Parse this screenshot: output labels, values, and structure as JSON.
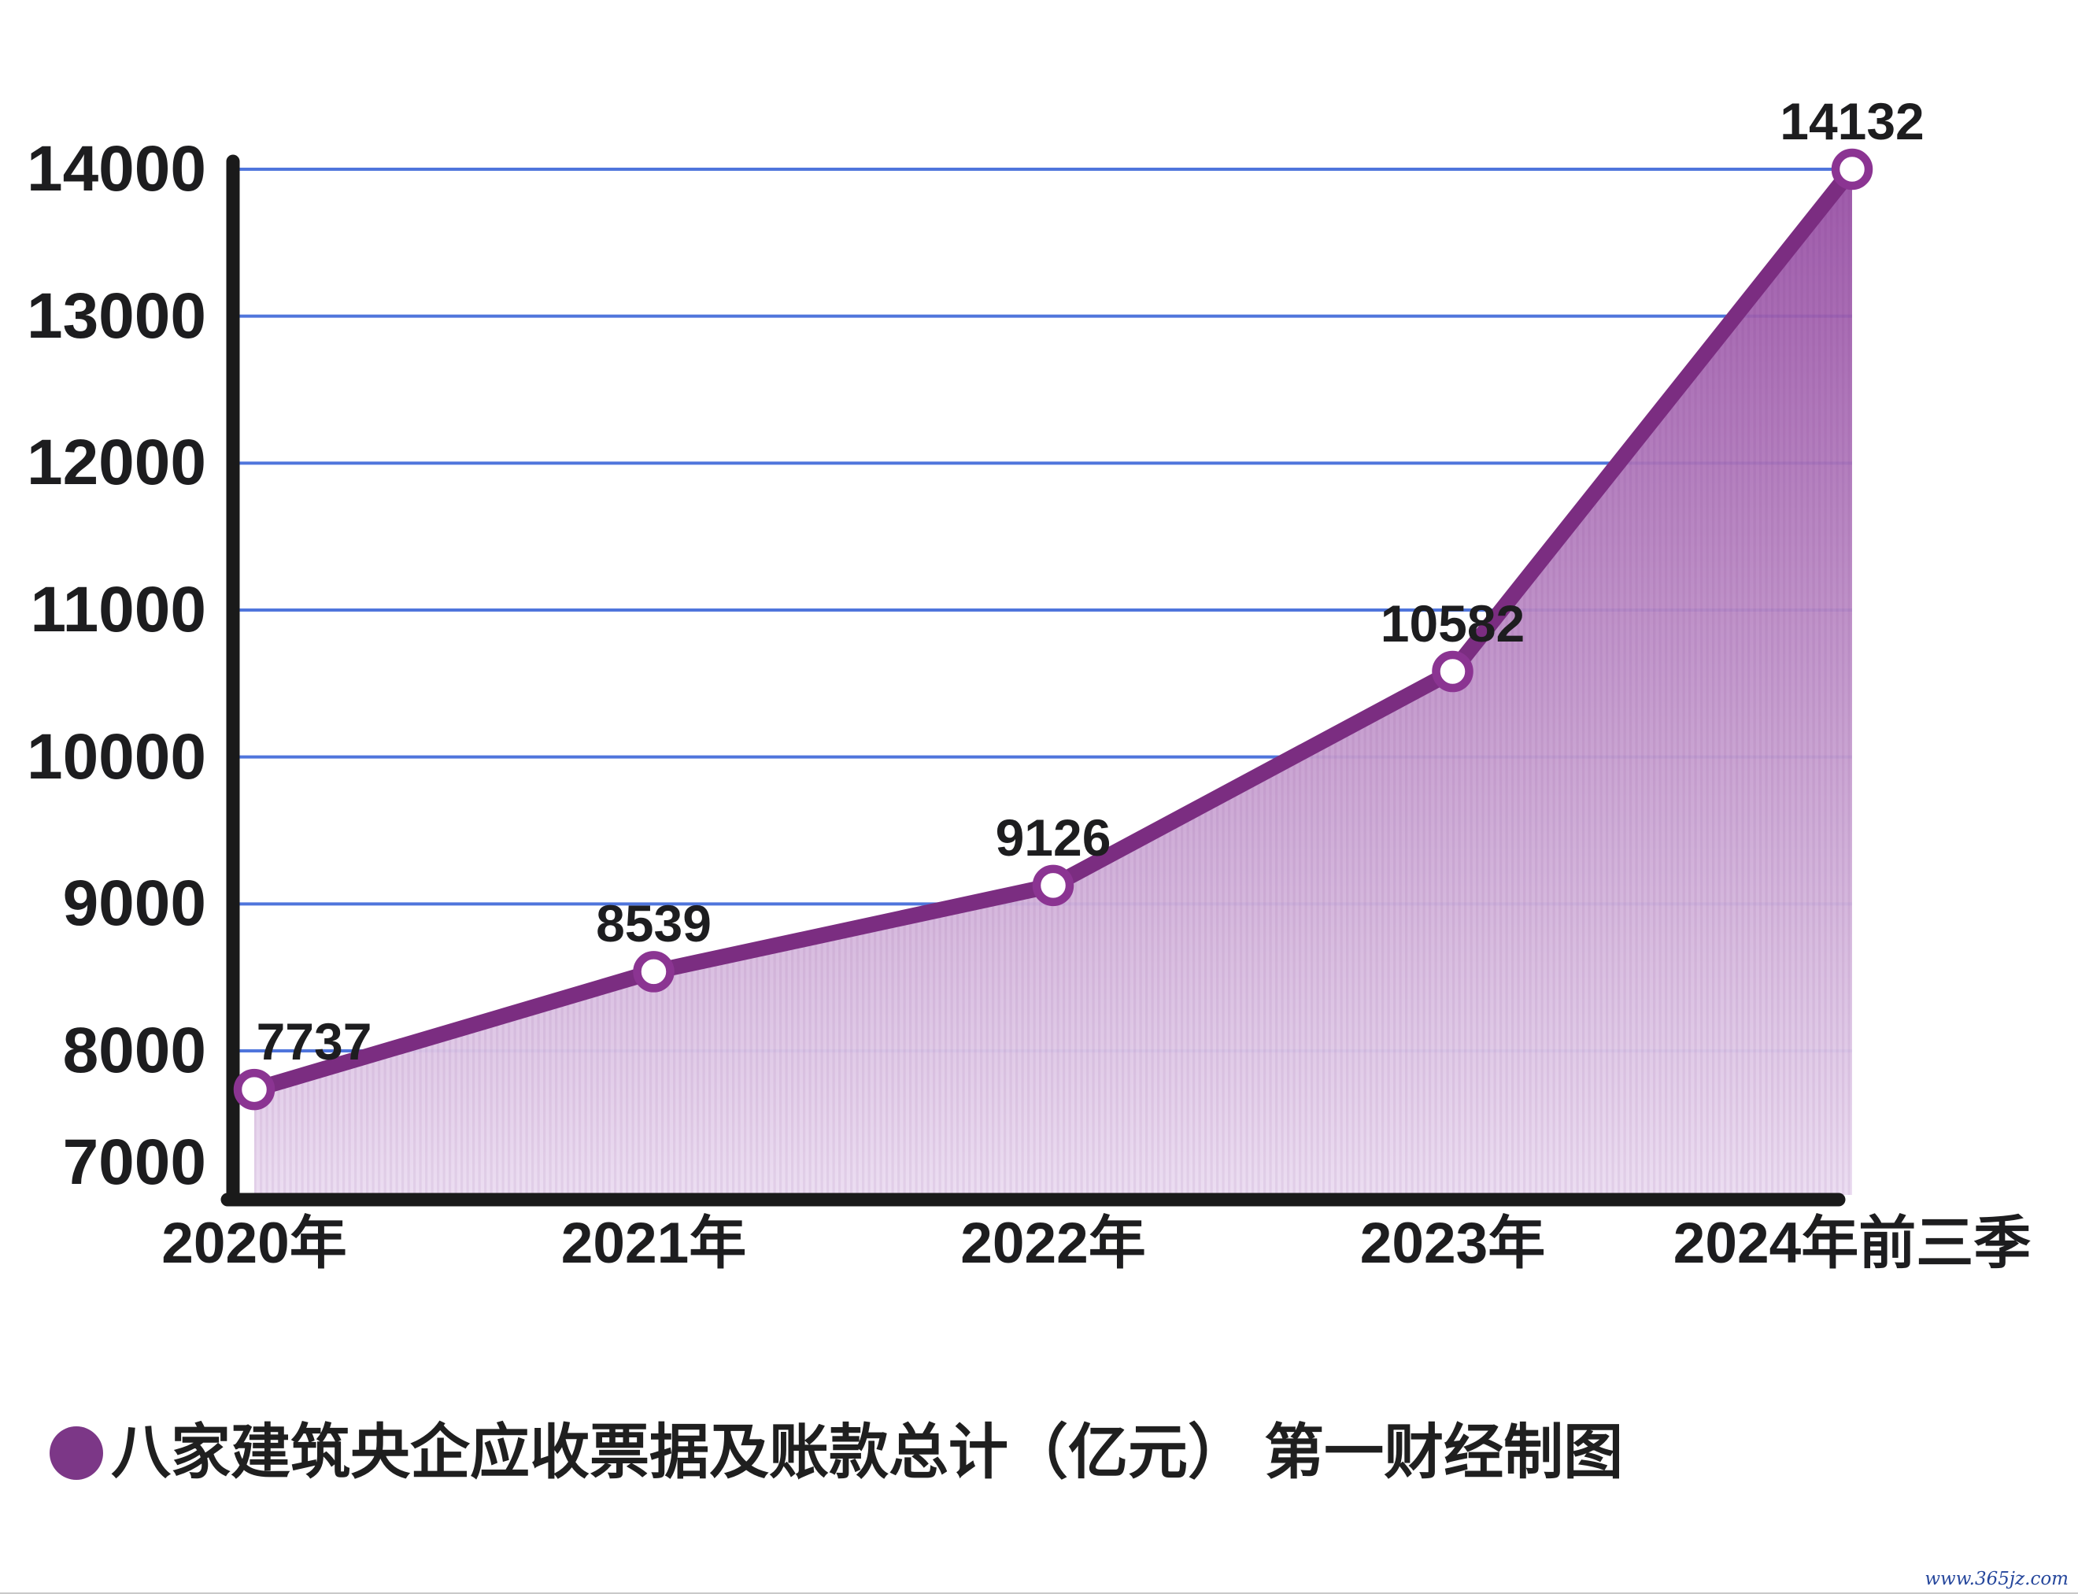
{
  "chart_data": {
    "type": "area",
    "categories": [
      "2020年",
      "2021年",
      "2022年",
      "2023年",
      "2024年前三季"
    ],
    "values": [
      7737,
      8539,
      9126,
      10582,
      14132
    ],
    "data_labels": [
      "7737",
      "8539",
      "9126",
      "10582",
      "14132"
    ],
    "yticks": [
      14000,
      13000,
      12000,
      11000,
      10000,
      9000,
      8000,
      7000
    ],
    "ylim": [
      7000,
      14000
    ],
    "grid": "horizontal",
    "legend": "八家建筑央企应收票据及账款总计（亿元） 第一财经制图",
    "legend_position": "bottom-left",
    "colors": {
      "line": "#7b2d81",
      "marker_ring": "#8b3492",
      "marker_center": "#ffffff",
      "area_top": "#954ba2",
      "area_bottom": "#ebdcf1",
      "gridline": "#4f75dc",
      "axis": "#1a1a1a",
      "label_text": "#1d1d1f",
      "legend_dot": "#7c3787",
      "watermark_text": "#26479c"
    }
  },
  "watermark": {
    "text": "www.365jz.com"
  }
}
